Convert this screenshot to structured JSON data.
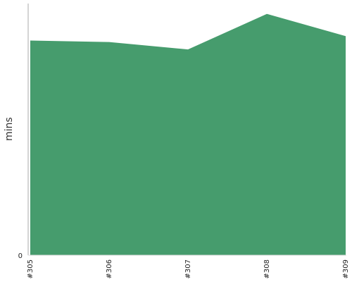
{
  "chart_data": {
    "type": "area",
    "title": "",
    "xlabel": "",
    "ylabel": "mins",
    "categories": [
      "#305",
      "#306",
      "#307",
      "#308",
      "#309"
    ],
    "series": [
      {
        "values": [
          14.5,
          14.4,
          13.9,
          16.3,
          14.8
        ]
      }
    ],
    "ylim": [
      0,
      17
    ],
    "y_ticks": [
      0
    ],
    "y_tick_labels": [
      "0"
    ],
    "grid": false,
    "legend": "none",
    "colors": {
      "area_fill": "#469c6d",
      "axis": "#aaaaaa"
    }
  }
}
